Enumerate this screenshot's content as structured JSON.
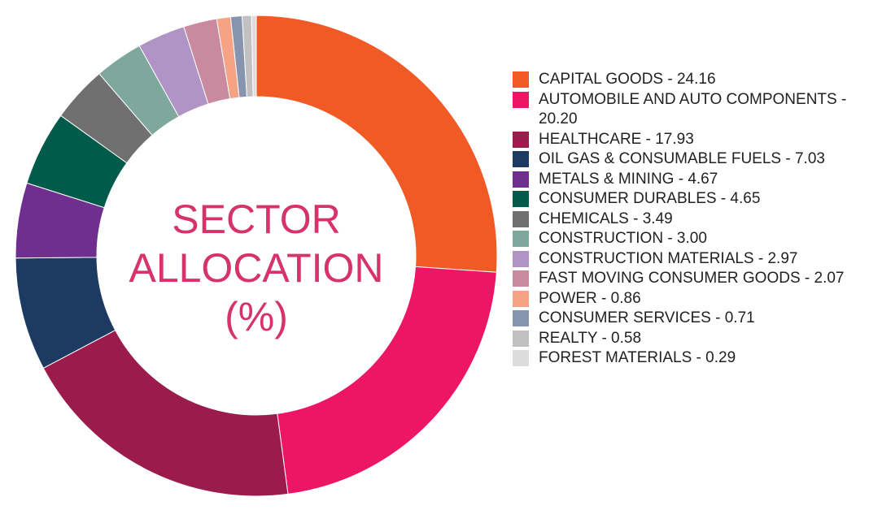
{
  "chart_data": {
    "type": "donut",
    "title": "SECTOR ALLOCATION (%)",
    "categories": [
      "CAPITAL GOODS - 24.16",
      "AUTOMOBILE AND AUTO COMPONENTS - 20.20",
      "HEALTHCARE - 17.93",
      "OIL GAS & CONSUMABLE FUELS - 7.03",
      "METALS & MINING - 4.67",
      "CONSUMER DURABLES - 4.65",
      "CHEMICALS - 3.49",
      "CONSTRUCTION - 3.00",
      "CONSTRUCTION MATERIALS - 2.97",
      "FAST MOVING CONSUMER GOODS - 2.07",
      "POWER - 0.86",
      "CONSUMER SERVICES - 0.71",
      "REALTY - 0.58",
      "FOREST MATERIALS - 0.29"
    ],
    "values": [
      24.16,
      20.2,
      17.93,
      7.03,
      4.67,
      4.65,
      3.49,
      3.0,
      2.97,
      2.07,
      0.86,
      0.71,
      0.58,
      0.29
    ],
    "colors": [
      "#f15a24",
      "#ed1566",
      "#9b1b4c",
      "#1d3a63",
      "#702e8f",
      "#005b4b",
      "#707070",
      "#7ea89c",
      "#b094c6",
      "#c98aa0",
      "#f6a385",
      "#8794ad",
      "#c1c1c1",
      "#dcdcdc"
    ],
    "legend": "right"
  }
}
